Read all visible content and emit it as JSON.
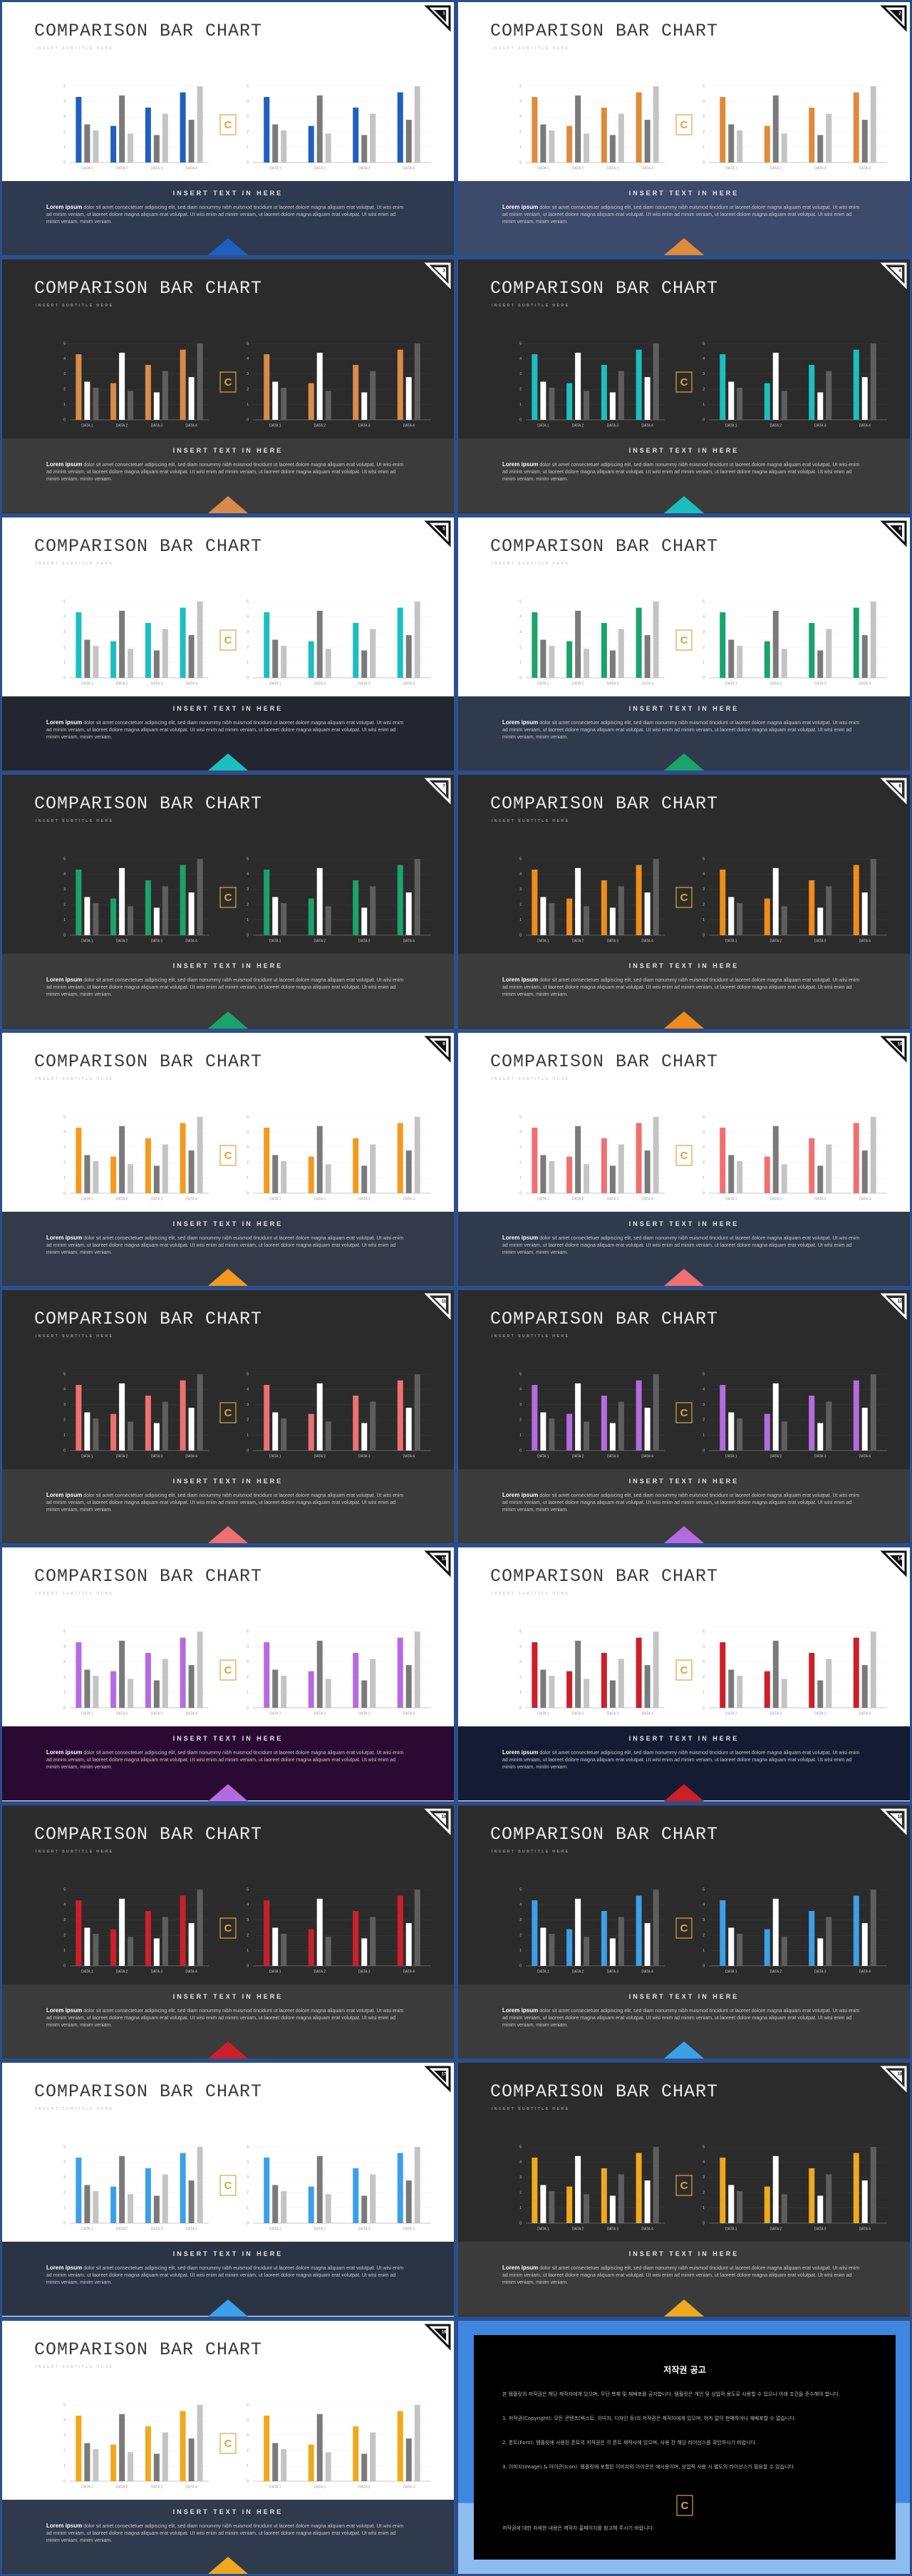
{
  "slide_template": {
    "title": "COMPARISON BAR CHART",
    "subtitle": "INSERT SUBTITLE HERE",
    "logo": "C",
    "text_heading": "INSERT TEXT IN HERE",
    "text_lead": "Lorem ipsum",
    "text_body": "dolor sit amet consectetuer adipiscing elit, sed diam nonummy nibh euismod tincidunt ut laoreet dolore magna aliquam erat volutpat. Ut wisi enim ad minim veniam, ut laoreet dolore magna aliquam erat volutpat. Ut wisi enim ad minim veniam, ut laoreet dolore magna aliquam erat volutpat. Ut wisi enim ad minim veniam, minim veniam.",
    "chart": {
      "type": "bar",
      "categories": [
        "DATA 1",
        "DATA 2",
        "DATA 3",
        "DATA 4"
      ],
      "series": [
        {
          "values": [
            4.3,
            2.4,
            3.6,
            4.6
          ]
        },
        {
          "values": [
            2.5,
            4.4,
            1.8,
            2.8
          ]
        },
        {
          "values": [
            2.1,
            1.9,
            3.2,
            5.0
          ]
        }
      ],
      "ylim": [
        0,
        5
      ],
      "yticks": [
        0,
        1,
        2,
        3,
        4,
        5
      ],
      "grid": true
    }
  },
  "slides": [
    {
      "number": 1,
      "dark": false,
      "background": "#ffffff",
      "footer": "#2e3a4f",
      "colors": [
        "#1f5fbf",
        "#7a7a7a",
        "#c4c4c4"
      ]
    },
    {
      "number": 2,
      "dark": false,
      "background": "#ffffff",
      "footer": "#3c4a6b",
      "colors": [
        "#e08a3c",
        "#7a7a7a",
        "#c4c4c4"
      ]
    },
    {
      "number": 3,
      "dark": true,
      "background": "#2b2b2b",
      "footer": "#3b3b3b",
      "colors": [
        "#d98b4a",
        "#ffffff",
        "#5e5e5e"
      ]
    },
    {
      "number": 4,
      "dark": true,
      "background": "#2b2b2b",
      "footer": "#3b3b3b",
      "colors": [
        "#1bbfbf",
        "#ffffff",
        "#5e5e5e"
      ]
    },
    {
      "number": 5,
      "dark": false,
      "background": "#ffffff",
      "footer": "#23262e",
      "colors": [
        "#1bbfbf",
        "#7a7a7a",
        "#c4c4c4"
      ]
    },
    {
      "number": 6,
      "dark": false,
      "background": "#ffffff",
      "footer": "#2f3a4d",
      "colors": [
        "#1aa36a",
        "#7a7a7a",
        "#c4c4c4"
      ]
    },
    {
      "number": 7,
      "dark": true,
      "background": "#2b2b2b",
      "footer": "#3b3b3b",
      "colors": [
        "#1aa36a",
        "#ffffff",
        "#5e5e5e"
      ]
    },
    {
      "number": 8,
      "dark": true,
      "background": "#2b2b2b",
      "footer": "#3b3b3b",
      "colors": [
        "#f08c1a",
        "#ffffff",
        "#5e5e5e"
      ]
    },
    {
      "number": 9,
      "dark": false,
      "background": "#ffffff",
      "footer": "#333a4a",
      "colors": [
        "#f39a1e",
        "#7a7a7a",
        "#c4c4c4"
      ]
    },
    {
      "number": 10,
      "dark": false,
      "background": "#ffffff",
      "footer": "#2f3a4d",
      "colors": [
        "#f07070",
        "#7a7a7a",
        "#c4c4c4"
      ]
    },
    {
      "number": 11,
      "dark": true,
      "background": "#2b2b2b",
      "footer": "#3b3b3b",
      "colors": [
        "#f07070",
        "#ffffff",
        "#5e5e5e"
      ]
    },
    {
      "number": 12,
      "dark": true,
      "background": "#2b2b2b",
      "footer": "#3b3b3b",
      "colors": [
        "#b56be0",
        "#ffffff",
        "#5e5e5e"
      ]
    },
    {
      "number": 13,
      "dark": false,
      "background": "#ffffff",
      "footer": "#2a0a33",
      "colors": [
        "#b56be0",
        "#7a7a7a",
        "#c4c4c4"
      ]
    },
    {
      "number": 14,
      "dark": false,
      "background": "#ffffff",
      "footer": "#141c33",
      "colors": [
        "#cc1f2a",
        "#7a7a7a",
        "#c4c4c4"
      ]
    },
    {
      "number": 15,
      "dark": true,
      "background": "#2b2b2b",
      "footer": "#3b3b3b",
      "colors": [
        "#cc1f2a",
        "#ffffff",
        "#5e5e5e"
      ]
    },
    {
      "number": 16,
      "dark": true,
      "background": "#2b2b2b",
      "footer": "#3b3b3b",
      "colors": [
        "#3aa0e8",
        "#ffffff",
        "#5e5e5e"
      ]
    },
    {
      "number": 17,
      "dark": false,
      "background": "#ffffff",
      "footer": "#2b3444",
      "colors": [
        "#3aa0e8",
        "#7a7a7a",
        "#c4c4c4"
      ]
    },
    {
      "number": 18,
      "dark": true,
      "background": "#2b2b2b",
      "footer": "#3b3b3b",
      "colors": [
        "#f0a81c",
        "#ffffff",
        "#5e5e5e"
      ]
    },
    {
      "number": 19,
      "dark": false,
      "background": "#ffffff",
      "footer": "#2f3a4d",
      "colors": [
        "#f0a81c",
        "#7a7a7a",
        "#c4c4c4"
      ]
    }
  ],
  "copyright": {
    "title": "저작권 공고",
    "paragraphs": [
      "본 템플릿의 저작권은 해당 제작자에게 있으며, 무단 복제 및 재배포를 금지합니다. 템플릿은 개인 및 상업적 용도로 사용할 수 있으나 아래 조건을 준수해야 합니다.",
      "1. 저작권(Copyright): 모든 콘텐츠(텍스트, 이미지, 디자인 등)의 저작권은 제작자에게 있으며, 허가 없이 판매하거나 재배포할 수 없습니다.",
      "2. 폰트(Font): 템플릿에 사용된 폰트의 저작권은 각 폰트 제작사에 있으며, 사용 전 해당 라이선스를 확인하시기 바랍니다.",
      "3. 이미지(Image) & 아이콘(Icon): 템플릿에 포함된 이미지와 아이콘은 예시용이며, 상업적 사용 시 별도의 라이선스가 필요할 수 있습니다.",
      "저작권에 대한 자세한 내용은 제작자 홈페이지를 참고해 주시기 바랍니다."
    ]
  }
}
